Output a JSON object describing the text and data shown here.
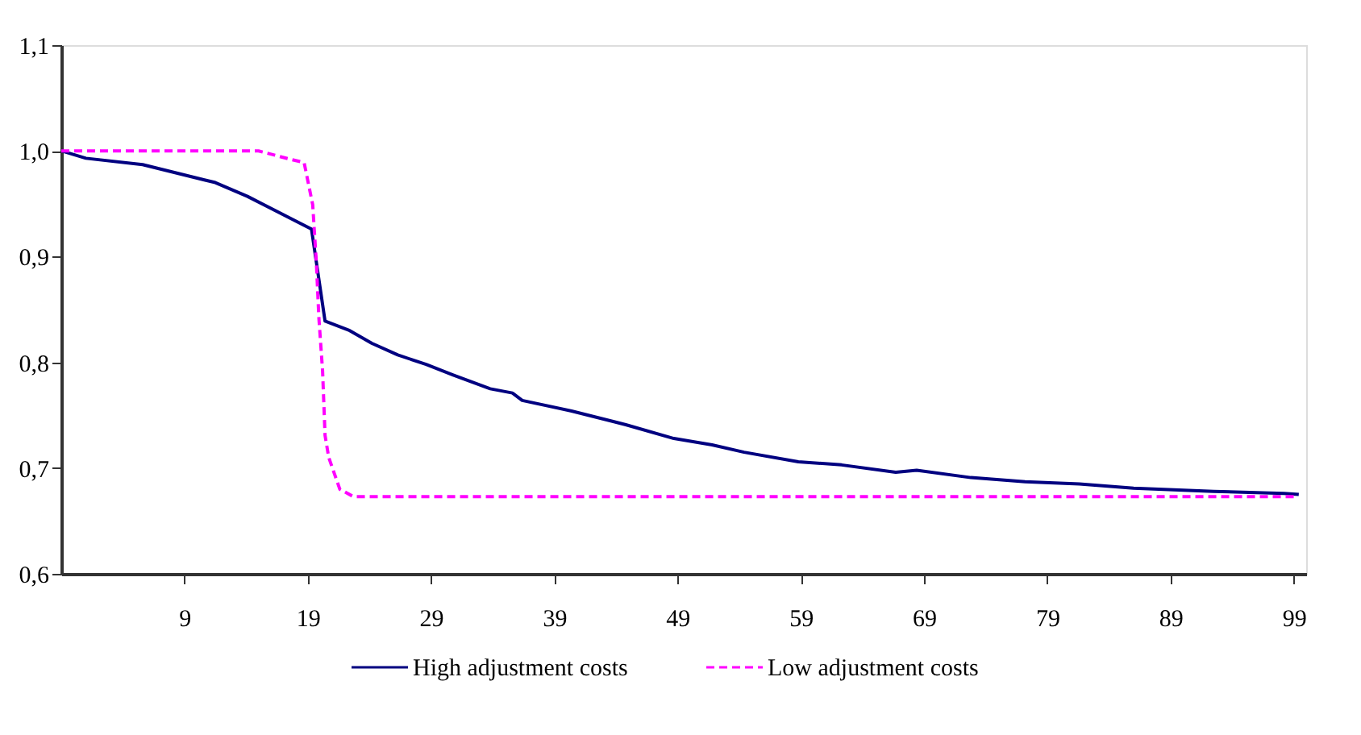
{
  "chart_data": {
    "type": "line",
    "xlim": [
      -1,
      100
    ],
    "xticks": [
      9,
      19,
      29,
      39,
      49,
      59,
      69,
      79,
      89,
      99
    ],
    "ylim": [
      0.6,
      1.1
    ],
    "yticks": [
      {
        "value": 0.6,
        "label": "0,6"
      },
      {
        "value": 0.7,
        "label": "0,7"
      },
      {
        "value": 0.8,
        "label": "0,8"
      },
      {
        "value": 0.9,
        "label": "0,9"
      },
      {
        "value": 1.0,
        "label": "1,0"
      },
      {
        "value": 1.1,
        "label": "1,1"
      }
    ],
    "grid": false,
    "legend": "bottom",
    "marker": "none",
    "series": [
      {
        "name": "High adjustment costs",
        "color": "#000080",
        "line_style": "solid",
        "x": [
          -1,
          1.0,
          5.6,
          11.5,
          14.1,
          19.3,
          20.4,
          22.4,
          24.2,
          26.3,
          28.6,
          30.8,
          33.8,
          35.6,
          36.4,
          40.4,
          44.8,
          48.7,
          51.8,
          54.4,
          58.8,
          62.3,
          66.7,
          68.4,
          72.8,
          77.2,
          81.6,
          86.0,
          92.5,
          98.2,
          99.4
        ],
        "values": [
          1.0,
          0.993,
          0.987,
          0.97,
          0.957,
          0.926,
          0.839,
          0.83,
          0.818,
          0.807,
          0.798,
          0.788,
          0.775,
          0.771,
          0.764,
          0.754,
          0.741,
          0.728,
          0.722,
          0.715,
          0.706,
          0.703,
          0.696,
          0.698,
          0.691,
          0.687,
          0.685,
          0.681,
          0.678,
          0.676,
          0.675
        ]
      },
      {
        "name": "Low adjustment costs",
        "color": "#ff00ff",
        "line_style": "dashed",
        "x": [
          -1,
          15,
          17.6,
          18.7,
          19.4,
          19.7,
          19.9,
          20.2,
          20.4,
          20.7,
          21.6,
          22.7,
          99
        ],
        "values": [
          1.0,
          1.0,
          0.992,
          0.989,
          0.949,
          0.893,
          0.842,
          0.792,
          0.731,
          0.71,
          0.68,
          0.673,
          0.673
        ]
      }
    ]
  }
}
